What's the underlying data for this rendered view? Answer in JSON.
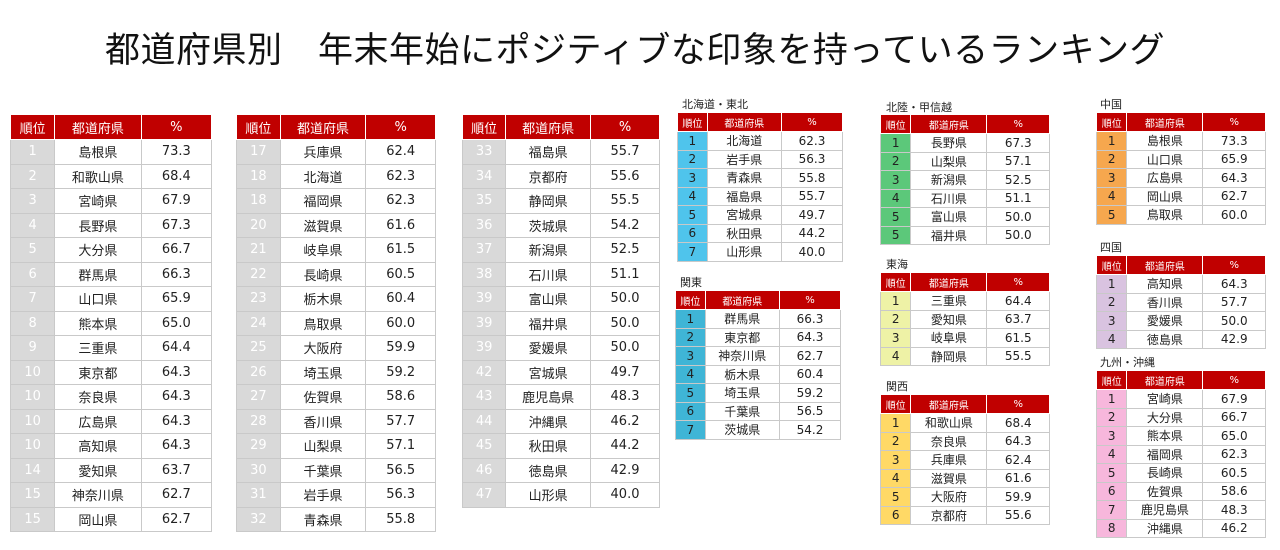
{
  "title": "都道府県別　年末年始にポジティブな印象を持っているランキング",
  "headers": {
    "rank": "順位",
    "pref": "都道府県",
    "pct": "%"
  },
  "region_colors": {
    "hokkaido_tohoku": "#4fc4ec",
    "kanto": "#3fb5d6",
    "hokuriku_koshinetsu": "#5cc87a",
    "tokai": "#eef2a6",
    "kansai": "#ffd966",
    "chugoku": "#f6a74e",
    "shikoku": "#d9c3e0",
    "kyushu_okinawa": "#f7b7dc",
    "header": "#c00000"
  },
  "main_tables": [
    {
      "rows": [
        {
          "rank": "1",
          "pref": "島根県",
          "pct": "73.3"
        },
        {
          "rank": "2",
          "pref": "和歌山県",
          "pct": "68.4"
        },
        {
          "rank": "3",
          "pref": "宮崎県",
          "pct": "67.9"
        },
        {
          "rank": "4",
          "pref": "長野県",
          "pct": "67.3"
        },
        {
          "rank": "5",
          "pref": "大分県",
          "pct": "66.7"
        },
        {
          "rank": "6",
          "pref": "群馬県",
          "pct": "66.3"
        },
        {
          "rank": "7",
          "pref": "山口県",
          "pct": "65.9"
        },
        {
          "rank": "8",
          "pref": "熊本県",
          "pct": "65.0"
        },
        {
          "rank": "9",
          "pref": "三重県",
          "pct": "64.4"
        },
        {
          "rank": "10",
          "pref": "東京都",
          "pct": "64.3"
        },
        {
          "rank": "10",
          "pref": "奈良県",
          "pct": "64.3"
        },
        {
          "rank": "10",
          "pref": "広島県",
          "pct": "64.3"
        },
        {
          "rank": "10",
          "pref": "高知県",
          "pct": "64.3"
        },
        {
          "rank": "14",
          "pref": "愛知県",
          "pct": "63.7"
        },
        {
          "rank": "15",
          "pref": "神奈川県",
          "pct": "62.7"
        },
        {
          "rank": "15",
          "pref": "岡山県",
          "pct": "62.7"
        }
      ]
    },
    {
      "rows": [
        {
          "rank": "17",
          "pref": "兵庫県",
          "pct": "62.4"
        },
        {
          "rank": "18",
          "pref": "北海道",
          "pct": "62.3"
        },
        {
          "rank": "18",
          "pref": "福岡県",
          "pct": "62.3"
        },
        {
          "rank": "20",
          "pref": "滋賀県",
          "pct": "61.6"
        },
        {
          "rank": "21",
          "pref": "岐阜県",
          "pct": "61.5"
        },
        {
          "rank": "22",
          "pref": "長崎県",
          "pct": "60.5"
        },
        {
          "rank": "23",
          "pref": "栃木県",
          "pct": "60.4"
        },
        {
          "rank": "24",
          "pref": "鳥取県",
          "pct": "60.0"
        },
        {
          "rank": "25",
          "pref": "大阪府",
          "pct": "59.9"
        },
        {
          "rank": "26",
          "pref": "埼玉県",
          "pct": "59.2"
        },
        {
          "rank": "27",
          "pref": "佐賀県",
          "pct": "58.6"
        },
        {
          "rank": "28",
          "pref": "香川県",
          "pct": "57.7"
        },
        {
          "rank": "29",
          "pref": "山梨県",
          "pct": "57.1"
        },
        {
          "rank": "30",
          "pref": "千葉県",
          "pct": "56.5"
        },
        {
          "rank": "31",
          "pref": "岩手県",
          "pct": "56.3"
        },
        {
          "rank": "32",
          "pref": "青森県",
          "pct": "55.8"
        }
      ]
    },
    {
      "rows": [
        {
          "rank": "33",
          "pref": "福島県",
          "pct": "55.7"
        },
        {
          "rank": "34",
          "pref": "京都府",
          "pct": "55.6"
        },
        {
          "rank": "35",
          "pref": "静岡県",
          "pct": "55.5"
        },
        {
          "rank": "36",
          "pref": "茨城県",
          "pct": "54.2"
        },
        {
          "rank": "37",
          "pref": "新潟県",
          "pct": "52.5"
        },
        {
          "rank": "38",
          "pref": "石川県",
          "pct": "51.1"
        },
        {
          "rank": "39",
          "pref": "富山県",
          "pct": "50.0"
        },
        {
          "rank": "39",
          "pref": "福井県",
          "pct": "50.0"
        },
        {
          "rank": "39",
          "pref": "愛媛県",
          "pct": "50.0"
        },
        {
          "rank": "42",
          "pref": "宮城県",
          "pct": "49.7"
        },
        {
          "rank": "43",
          "pref": "鹿児島県",
          "pct": "48.3"
        },
        {
          "rank": "44",
          "pref": "沖縄県",
          "pct": "46.2"
        },
        {
          "rank": "45",
          "pref": "秋田県",
          "pct": "44.2"
        },
        {
          "rank": "46",
          "pref": "徳島県",
          "pct": "42.9"
        },
        {
          "rank": "47",
          "pref": "山形県",
          "pct": "40.0"
        }
      ]
    }
  ],
  "regions": [
    {
      "id": "hokkaido_tohoku",
      "label": "北海道・東北",
      "color": "#4fc4ec",
      "rows": [
        {
          "rank": "1",
          "pref": "北海道",
          "pct": "62.3"
        },
        {
          "rank": "2",
          "pref": "岩手県",
          "pct": "56.3"
        },
        {
          "rank": "3",
          "pref": "青森県",
          "pct": "55.8"
        },
        {
          "rank": "4",
          "pref": "福島県",
          "pct": "55.7"
        },
        {
          "rank": "5",
          "pref": "宮城県",
          "pct": "49.7"
        },
        {
          "rank": "6",
          "pref": "秋田県",
          "pct": "44.2"
        },
        {
          "rank": "7",
          "pref": "山形県",
          "pct": "40.0"
        }
      ]
    },
    {
      "id": "kanto",
      "label": "関東",
      "color": "#3fb5d6",
      "rows": [
        {
          "rank": "1",
          "pref": "群馬県",
          "pct": "66.3"
        },
        {
          "rank": "2",
          "pref": "東京都",
          "pct": "64.3"
        },
        {
          "rank": "3",
          "pref": "神奈川県",
          "pct": "62.7"
        },
        {
          "rank": "4",
          "pref": "栃木県",
          "pct": "60.4"
        },
        {
          "rank": "5",
          "pref": "埼玉県",
          "pct": "59.2"
        },
        {
          "rank": "6",
          "pref": "千葉県",
          "pct": "56.5"
        },
        {
          "rank": "7",
          "pref": "茨城県",
          "pct": "54.2"
        }
      ]
    },
    {
      "id": "hokuriku_koshinetsu",
      "label": "北陸・甲信越",
      "color": "#5cc87a",
      "rows": [
        {
          "rank": "1",
          "pref": "長野県",
          "pct": "67.3"
        },
        {
          "rank": "2",
          "pref": "山梨県",
          "pct": "57.1"
        },
        {
          "rank": "3",
          "pref": "新潟県",
          "pct": "52.5"
        },
        {
          "rank": "4",
          "pref": "石川県",
          "pct": "51.1"
        },
        {
          "rank": "5",
          "pref": "富山県",
          "pct": "50.0"
        },
        {
          "rank": "5",
          "pref": "福井県",
          "pct": "50.0"
        }
      ]
    },
    {
      "id": "tokai",
      "label": "東海",
      "color": "#eef2a6",
      "rows": [
        {
          "rank": "1",
          "pref": "三重県",
          "pct": "64.4"
        },
        {
          "rank": "2",
          "pref": "愛知県",
          "pct": "63.7"
        },
        {
          "rank": "3",
          "pref": "岐阜県",
          "pct": "61.5"
        },
        {
          "rank": "4",
          "pref": "静岡県",
          "pct": "55.5"
        }
      ]
    },
    {
      "id": "kansai",
      "label": "関西",
      "color": "#ffd966",
      "rows": [
        {
          "rank": "1",
          "pref": "和歌山県",
          "pct": "68.4"
        },
        {
          "rank": "2",
          "pref": "奈良県",
          "pct": "64.3"
        },
        {
          "rank": "3",
          "pref": "兵庫県",
          "pct": "62.4"
        },
        {
          "rank": "4",
          "pref": "滋賀県",
          "pct": "61.6"
        },
        {
          "rank": "5",
          "pref": "大阪府",
          "pct": "59.9"
        },
        {
          "rank": "6",
          "pref": "京都府",
          "pct": "55.6"
        }
      ]
    },
    {
      "id": "chugoku",
      "label": "中国",
      "color": "#f6a74e",
      "rows": [
        {
          "rank": "1",
          "pref": "島根県",
          "pct": "73.3"
        },
        {
          "rank": "2",
          "pref": "山口県",
          "pct": "65.9"
        },
        {
          "rank": "3",
          "pref": "広島県",
          "pct": "64.3"
        },
        {
          "rank": "4",
          "pref": "岡山県",
          "pct": "62.7"
        },
        {
          "rank": "5",
          "pref": "鳥取県",
          "pct": "60.0"
        }
      ]
    },
    {
      "id": "shikoku",
      "label": "四国",
      "color": "#d9c3e0",
      "rows": [
        {
          "rank": "1",
          "pref": "高知県",
          "pct": "64.3"
        },
        {
          "rank": "2",
          "pref": "香川県",
          "pct": "57.7"
        },
        {
          "rank": "3",
          "pref": "愛媛県",
          "pct": "50.0"
        },
        {
          "rank": "4",
          "pref": "徳島県",
          "pct": "42.9"
        }
      ]
    },
    {
      "id": "kyushu_okinawa",
      "label": "九州・沖縄",
      "color": "#f7b7dc",
      "rows": [
        {
          "rank": "1",
          "pref": "宮崎県",
          "pct": "67.9"
        },
        {
          "rank": "2",
          "pref": "大分県",
          "pct": "66.7"
        },
        {
          "rank": "3",
          "pref": "熊本県",
          "pct": "65.0"
        },
        {
          "rank": "4",
          "pref": "福岡県",
          "pct": "62.3"
        },
        {
          "rank": "5",
          "pref": "長崎県",
          "pct": "60.5"
        },
        {
          "rank": "6",
          "pref": "佐賀県",
          "pct": "58.6"
        },
        {
          "rank": "7",
          "pref": "鹿児島県",
          "pct": "48.3"
        },
        {
          "rank": "8",
          "pref": "沖縄県",
          "pct": "46.2"
        }
      ]
    }
  ]
}
